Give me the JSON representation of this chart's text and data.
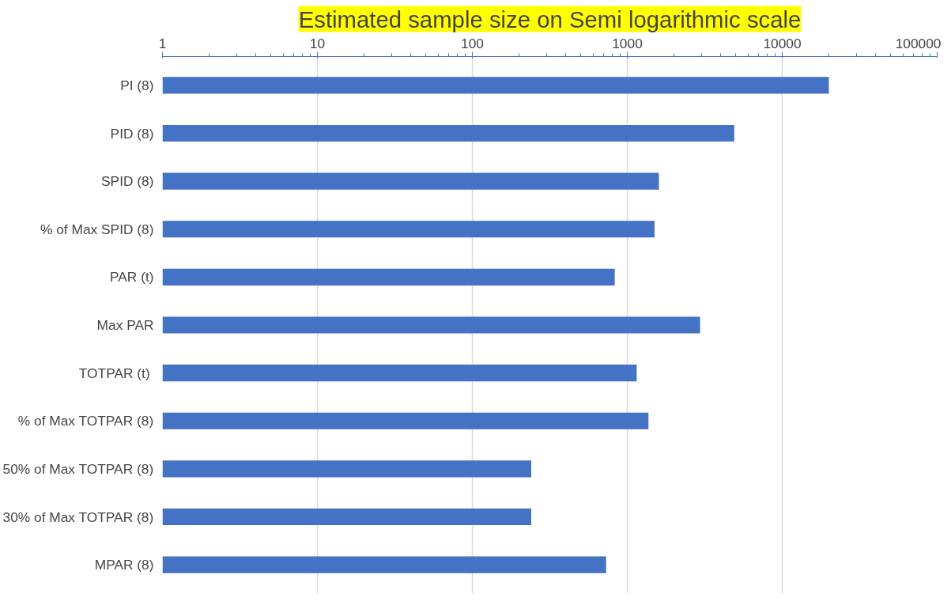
{
  "chart_data": {
    "type": "bar",
    "orientation": "horizontal",
    "title": "Estimated sample size on Semi logarithmic scale",
    "categories": [
      "PI (8)",
      "PID (8)",
      "SPID (8)",
      "% of Max SPID (8)",
      "PAR (t)",
      "Max PAR",
      "TOTPAR  (t)",
      "% of Max TOTPAR (8)",
      "50% of Max TOTPAR (8)",
      "30% of Max TOTPAR (8)",
      "MPAR (8)"
    ],
    "values": [
      20000,
      4900,
      1600,
      1500,
      830,
      2950,
      1150,
      1370,
      240,
      240,
      730
    ],
    "color": "#4472c4",
    "log": "x",
    "xlim": [
      1,
      100000
    ],
    "xticks": [
      1,
      10,
      100,
      1000,
      10000,
      100000
    ],
    "grid": "x"
  }
}
